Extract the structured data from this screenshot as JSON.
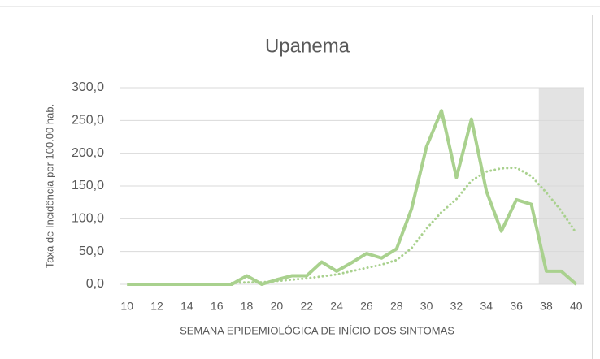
{
  "chart_data": {
    "type": "line",
    "title": "Upanema",
    "x_label": "SEMANA EPIDEMIOLÓGICA DE INÍCIO DOS SINTOMAS",
    "y_label": "Taxa de Incidência por 100.00 hab.",
    "x": [
      10,
      11,
      12,
      13,
      14,
      15,
      16,
      17,
      18,
      19,
      20,
      21,
      22,
      23,
      24,
      25,
      26,
      27,
      28,
      29,
      30,
      31,
      32,
      33,
      34,
      35,
      36,
      37,
      38,
      39,
      40
    ],
    "series": [
      {
        "color": "#a9d18e",
        "style": "solid",
        "values": [
          0,
          0,
          0,
          0,
          0,
          0,
          0,
          0,
          13,
          0,
          7,
          13,
          13,
          34,
          20,
          33,
          47,
          40,
          54,
          115,
          210,
          265,
          163,
          252,
          142,
          81,
          129,
          122,
          20,
          20,
          0
        ]
      },
      {
        "color": "#a9d18e",
        "style": "dotted",
        "values": [
          null,
          null,
          null,
          null,
          null,
          null,
          null,
          2,
          3,
          3,
          5,
          7,
          9,
          12,
          15,
          20,
          25,
          30,
          37,
          55,
          85,
          110,
          130,
          158,
          172,
          177,
          178,
          165,
          140,
          112,
          78
        ]
      }
    ],
    "shaded_region": {
      "x": [
        37.5,
        40.5
      ],
      "color": "#e3e3e3"
    },
    "xlim": [
      9.5,
      40.5
    ],
    "xticks": [
      10,
      12,
      14,
      16,
      18,
      20,
      22,
      24,
      26,
      28,
      30,
      32,
      34,
      36,
      38,
      40
    ],
    "ylim": [
      0,
      300
    ],
    "yticks": [
      {
        "value": 0,
        "label": "0,0"
      },
      {
        "value": 50,
        "label": "50,0"
      },
      {
        "value": 100,
        "label": "100,0"
      },
      {
        "value": 150,
        "label": "150,0"
      },
      {
        "value": 200,
        "label": "200,0"
      },
      {
        "value": 250,
        "label": "250,0"
      },
      {
        "value": 300,
        "label": "300,0"
      }
    ],
    "grid": true
  }
}
